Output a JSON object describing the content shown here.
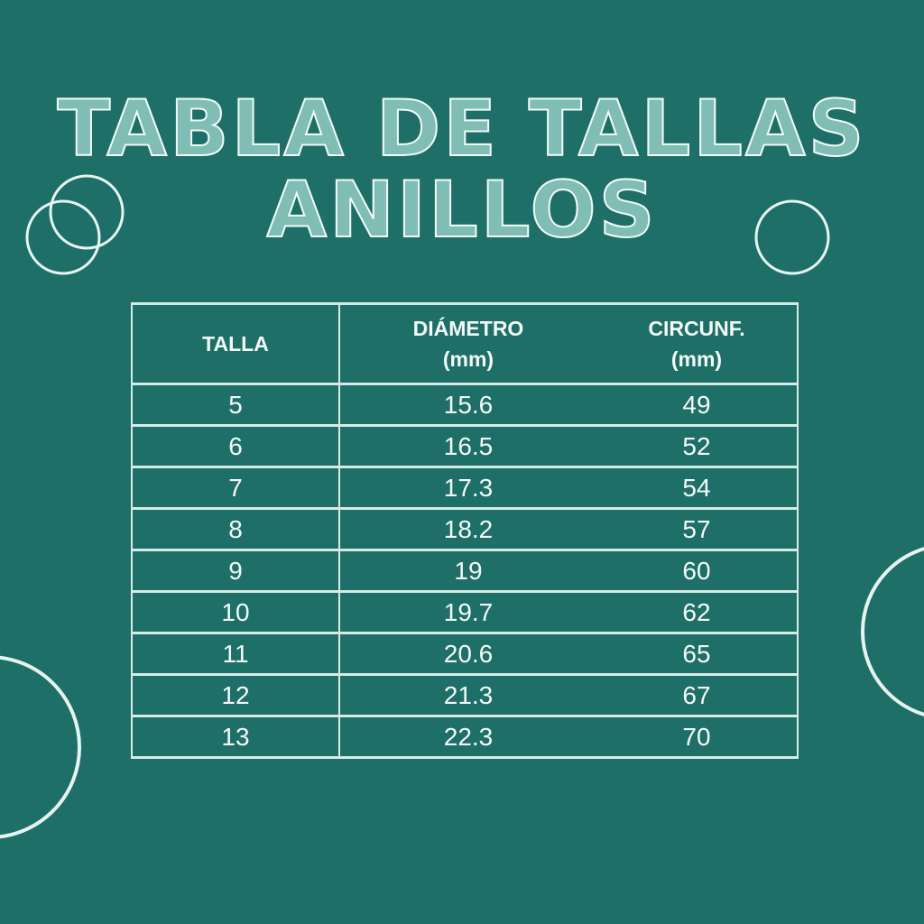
{
  "title": {
    "line1": "TABLA DE TALLAS",
    "line2": "ANILLOS"
  },
  "colors": {
    "background": "#1e6f68",
    "lines": "#d6ebe6",
    "text": "#f4faf8"
  },
  "decorations": [
    "ring-icon",
    "ring-icon",
    "ring-icon",
    "ring-icon",
    "ring-icon"
  ],
  "table": {
    "headers": [
      {
        "line1": "TALLA",
        "line2": ""
      },
      {
        "line1": "DIÁMETRO",
        "line2": "(mm)"
      },
      {
        "line1": "CIRCUNF.",
        "line2": "(mm)"
      }
    ],
    "rows": [
      [
        "5",
        "15.6",
        "49"
      ],
      [
        "6",
        "16.5",
        "52"
      ],
      [
        "7",
        "17.3",
        "54"
      ],
      [
        "8",
        "18.2",
        "57"
      ],
      [
        "9",
        "19",
        "60"
      ],
      [
        "10",
        "19.7",
        "62"
      ],
      [
        "11",
        "20.6",
        "65"
      ],
      [
        "12",
        "21.3",
        "67"
      ],
      [
        "13",
        "22.3",
        "70"
      ]
    ]
  }
}
